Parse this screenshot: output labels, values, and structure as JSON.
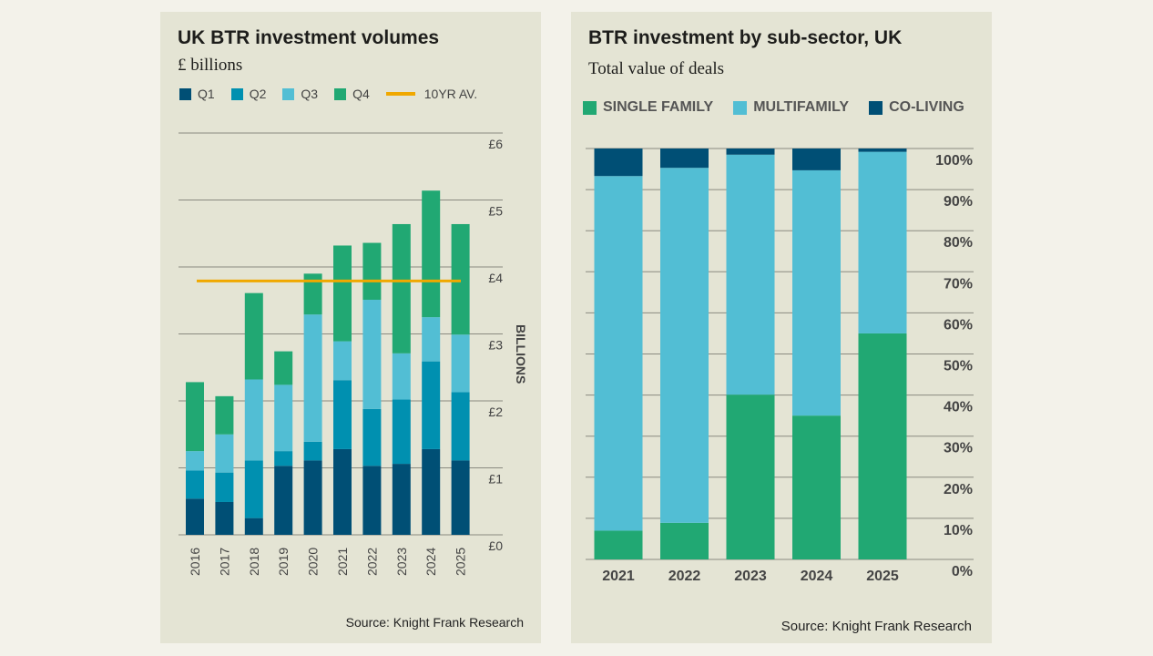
{
  "colors": {
    "q1": "#004f75",
    "q2": "#0090b0",
    "q3": "#52bed4",
    "q4": "#21a873",
    "avg": "#f0a800",
    "single_family": "#21a873",
    "multifamily": "#52bed4",
    "co_living": "#004f75",
    "grid": "#8a8a80"
  },
  "chart_data": [
    {
      "type": "bar",
      "stacked": true,
      "title": "UK BTR investment volumes",
      "subtitle": "£ billions",
      "ylabel": "BILLIONS",
      "xlabel": "",
      "ylim": [
        0,
        6
      ],
      "yticks": [
        "£0",
        "£1",
        "£2",
        "£3",
        "£4",
        "£5",
        "£6"
      ],
      "categories": [
        "2016",
        "2017",
        "2018",
        "2019",
        "2020",
        "2021",
        "2022",
        "2023",
        "2024",
        "2025"
      ],
      "series": [
        {
          "name": "Q1",
          "color_key": "q1",
          "values": [
            0.54,
            0.49,
            0.25,
            1.03,
            1.11,
            1.28,
            1.03,
            1.06,
            1.28,
            1.11
          ]
        },
        {
          "name": "Q2",
          "color_key": "q2",
          "values": [
            0.42,
            0.44,
            0.86,
            0.22,
            0.28,
            1.03,
            0.85,
            0.96,
            1.31,
            1.02
          ]
        },
        {
          "name": "Q3",
          "color_key": "q3",
          "values": [
            0.29,
            0.57,
            1.21,
            0.99,
            1.9,
            0.58,
            1.63,
            0.69,
            0.66,
            0.86
          ]
        },
        {
          "name": "Q4",
          "color_key": "q4",
          "values": [
            1.03,
            0.57,
            1.29,
            0.5,
            0.61,
            1.43,
            0.85,
            1.93,
            1.89,
            1.65
          ]
        }
      ],
      "reference_line": {
        "name": "10YR AV.",
        "value": 3.79,
        "color_key": "avg"
      },
      "legend": "top",
      "source": "Source: Knight Frank Research"
    },
    {
      "type": "bar",
      "stacked": true,
      "title": "BTR investment by sub-sector, UK",
      "subtitle": "Total value of deals",
      "ylabel": "",
      "xlabel": "",
      "ylim": [
        0,
        100
      ],
      "yticks": [
        "0%",
        "10%",
        "20%",
        "30%",
        "40%",
        "50%",
        "60%",
        "70%",
        "80%",
        "90%",
        "100%"
      ],
      "categories": [
        "2021",
        "2022",
        "2023",
        "2024",
        "2025"
      ],
      "series": [
        {
          "name": "SINGLE FAMILY",
          "color_key": "single_family",
          "values": [
            7.0,
            8.9,
            40.1,
            35.0,
            55.0
          ]
        },
        {
          "name": "MULTIFAMILY",
          "color_key": "multifamily",
          "values": [
            86.3,
            86.4,
            58.4,
            59.7,
            44.2
          ]
        },
        {
          "name": "CO-LIVING",
          "color_key": "co_living",
          "values": [
            6.7,
            4.7,
            1.5,
            5.3,
            0.8
          ]
        }
      ],
      "legend": "top",
      "source": "Source: Knight Frank Research"
    }
  ]
}
